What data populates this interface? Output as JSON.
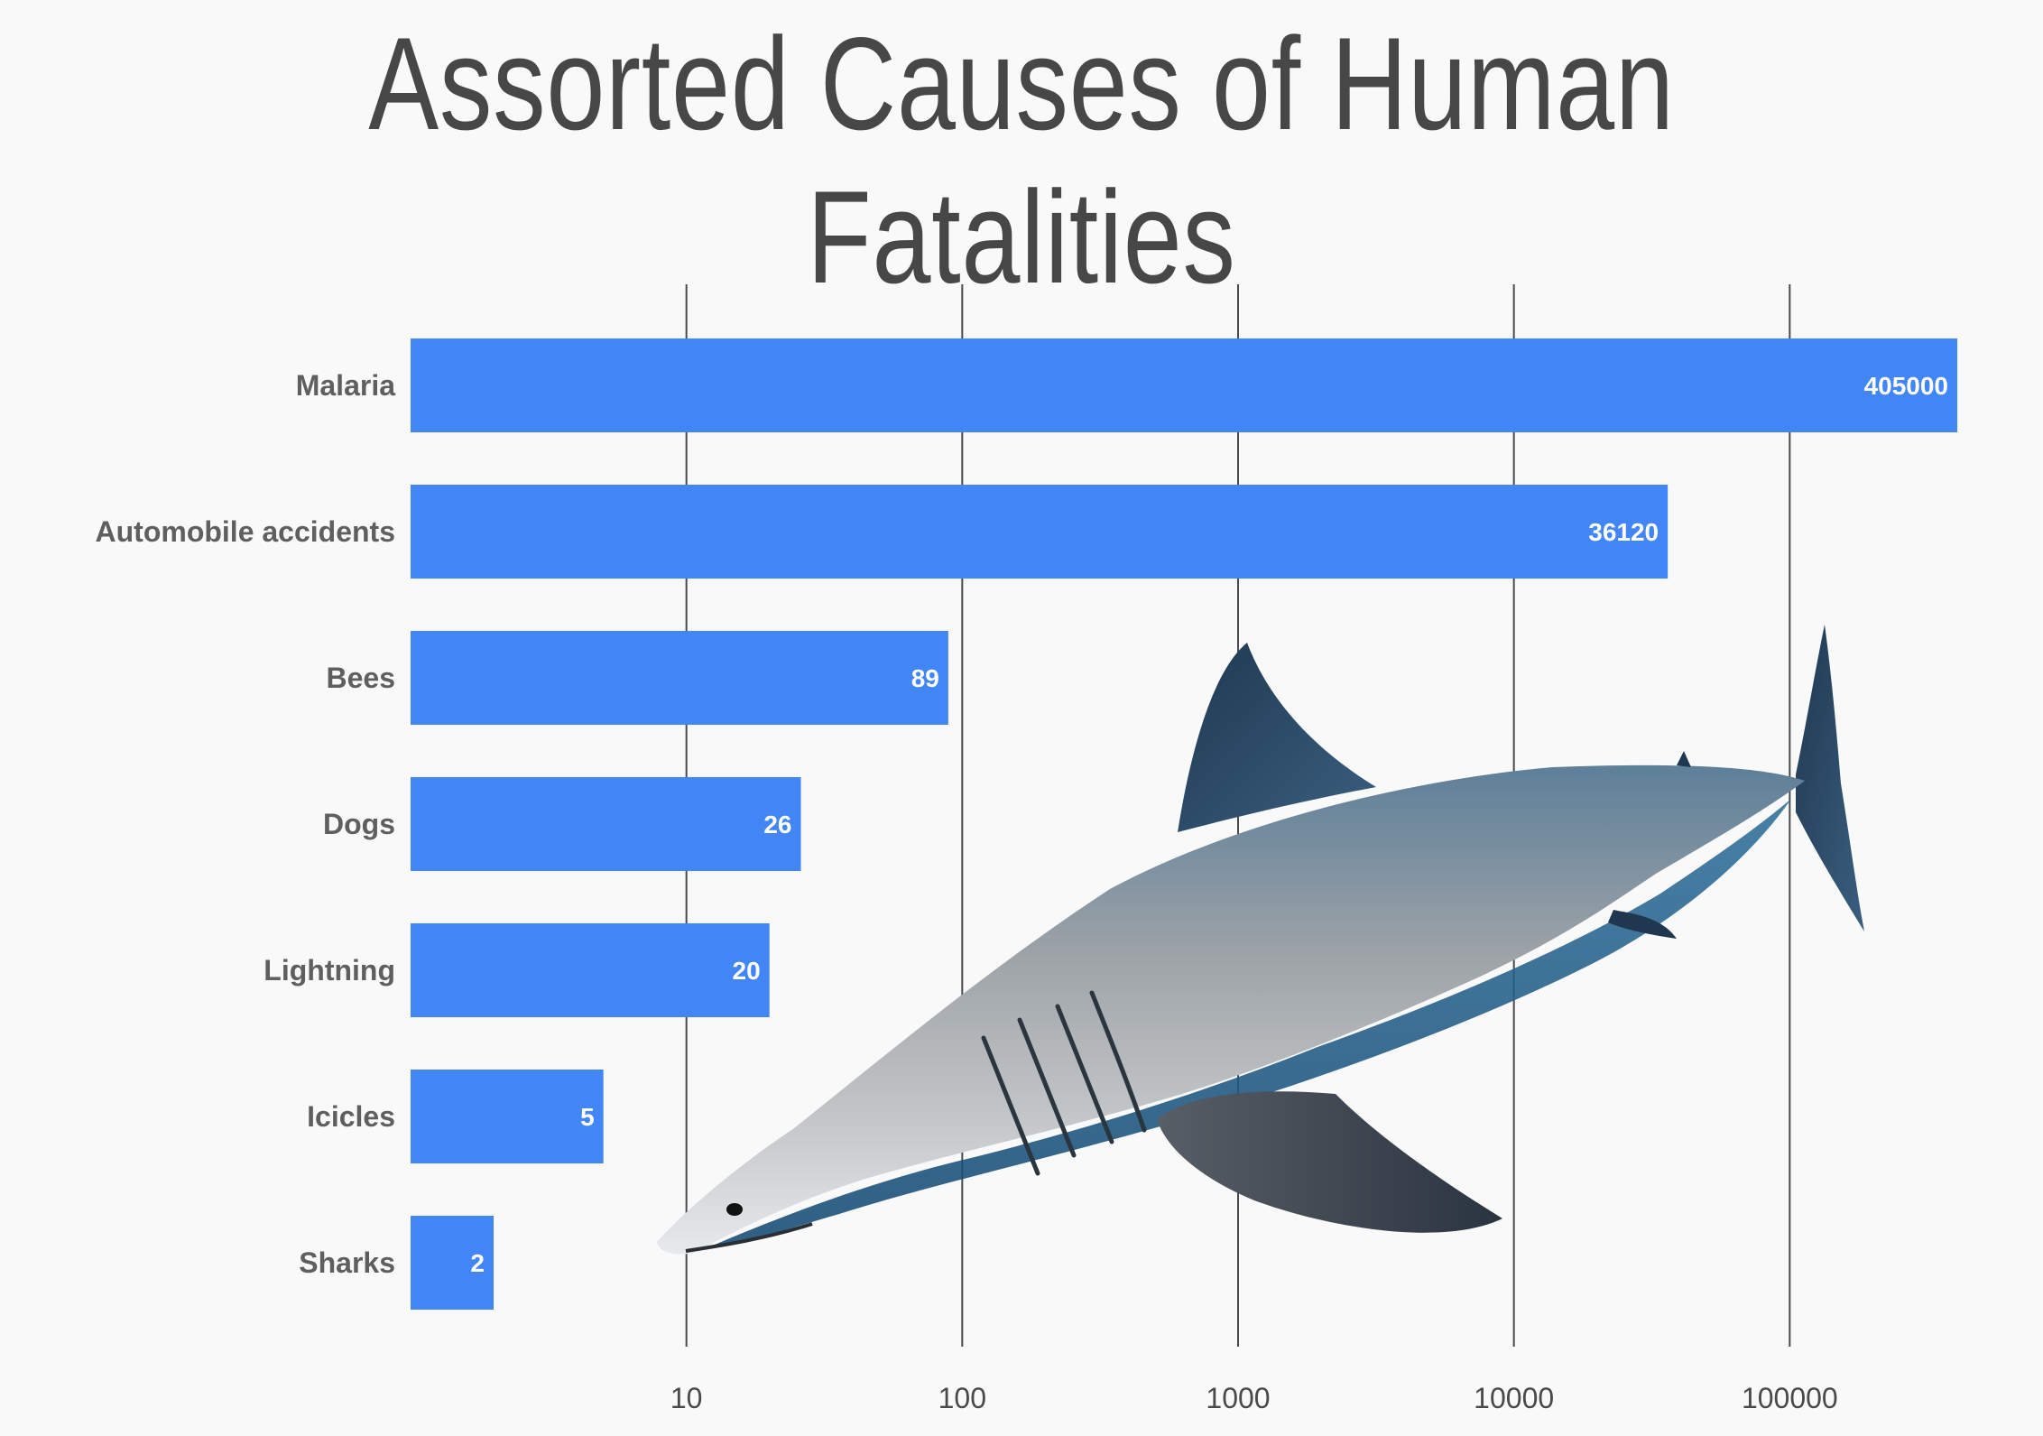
{
  "chart_data": {
    "type": "bar",
    "orientation": "horizontal",
    "title": "Assorted Causes of Human Fatalities",
    "xlabel": "",
    "ylabel": "",
    "x_scale": "log",
    "xlim": [
      1,
      450000
    ],
    "grid": true,
    "categories": [
      "Malaria",
      "Automobile accidents",
      "Bees",
      "Dogs",
      "Lightning",
      "Icicles",
      "Sharks"
    ],
    "values": [
      405000,
      36120,
      89,
      26,
      20,
      5,
      2
    ],
    "data_labels": [
      "405000",
      "36120",
      "89",
      "26",
      "20",
      "5",
      "2"
    ],
    "x_ticks": [
      10,
      100,
      1000,
      10000,
      100000
    ],
    "x_tick_labels": [
      "10",
      "100",
      "1000",
      "10000",
      "100000"
    ]
  },
  "colors": {
    "background": "#f9f9f9",
    "bar": "#4285f4",
    "grid": "#4a4a4a",
    "category_text": "#5f5f5f",
    "tick_text": "#4a4a4a",
    "title": "#474747"
  },
  "illustration": "great-white-shark"
}
